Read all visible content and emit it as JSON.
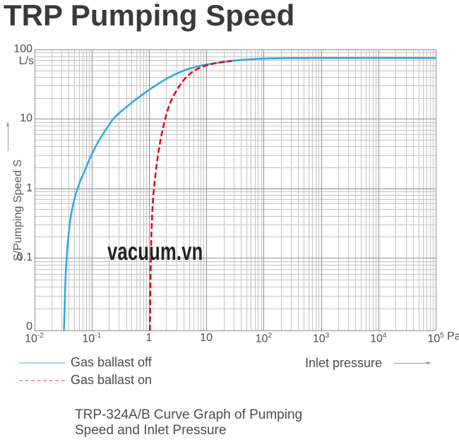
{
  "title": "TRP Pumping Speed",
  "watermark": "vacuum.vn",
  "caption": {
    "line1": "TRP-324A/B Curve Graph of Pumping",
    "line2": "Speed and Inlet Pressure"
  },
  "colors": {
    "gas_ballast_off": "#29a9e0",
    "gas_ballast_on": "#e60012",
    "legend_off_sample": "#a6d9ef",
    "legend_on_sample": "#f0a2a5",
    "grid_major": "#8f8f8f",
    "grid_minor": "#c4c4c4",
    "text": "#4d4d4d"
  },
  "axes": {
    "y_unit": "L/s",
    "y_axis_label": "S/Pumping Speed S",
    "x_axis_label": "Inlet pressure",
    "x_unit": "Pa",
    "y_ticks": [
      {
        "label": "100",
        "value": 100
      },
      {
        "label": "10",
        "value": 10
      },
      {
        "label": "1",
        "value": 1
      },
      {
        "label": "0.1",
        "value": 0.1
      },
      {
        "label": "0",
        "value": 0.01
      }
    ],
    "x_ticks": [
      {
        "base": "10",
        "exp": "-2",
        "value": 0.01
      },
      {
        "base": "10",
        "exp": "-1",
        "value": 0.1
      },
      {
        "label": "1",
        "value": 1
      },
      {
        "label": "10",
        "value": 10
      },
      {
        "base": "10",
        "exp": "2",
        "value": 100
      },
      {
        "base": "10",
        "exp": "3",
        "value": 1000
      },
      {
        "base": "10",
        "exp": "4",
        "value": 10000
      },
      {
        "base": "10",
        "exp": "5",
        "value": 100000
      }
    ]
  },
  "legend": [
    {
      "label": "Gas ballast off",
      "style": "solid"
    },
    {
      "label": "Gas ballast on",
      "style": "dashed"
    }
  ],
  "chart_data": {
    "type": "line",
    "title": "TRP Pumping Speed",
    "xlabel": "Inlet pressure (Pa)",
    "ylabel": "S/Pumping Speed S (L/s)",
    "x_scale": "log",
    "y_scale": "log",
    "xlim": [
      0.01,
      100000
    ],
    "ylim": [
      0.01,
      100
    ],
    "grid": true,
    "legend_position": "bottom-left",
    "series": [
      {
        "name": "Gas ballast off",
        "color": "#29a9e0",
        "style": "solid",
        "points": [
          [
            0.033,
            0.01
          ],
          [
            0.035,
            0.05
          ],
          [
            0.038,
            0.15
          ],
          [
            0.044,
            0.42
          ],
          [
            0.057,
            1.0
          ],
          [
            0.075,
            1.75
          ],
          [
            0.1,
            3.05
          ],
          [
            0.135,
            4.9
          ],
          [
            0.18,
            7.1
          ],
          [
            0.24,
            10
          ],
          [
            0.4,
            14.7
          ],
          [
            0.7,
            21.1
          ],
          [
            1.2,
            28.9
          ],
          [
            2.3,
            40
          ],
          [
            4.6,
            51.5
          ],
          [
            9.4,
            60
          ],
          [
            19,
            65.5
          ],
          [
            39,
            70.3
          ],
          [
            100,
            73.7
          ],
          [
            300,
            75
          ],
          [
            2000,
            75.4
          ],
          [
            20000,
            75.4
          ],
          [
            100000,
            75
          ]
        ]
      },
      {
        "name": "Gas ballast on",
        "color": "#e60012",
        "style": "dashed",
        "points": [
          [
            1.04,
            0.01
          ],
          [
            1.06,
            0.04
          ],
          [
            1.085,
            0.12
          ],
          [
            1.12,
            0.3
          ],
          [
            1.18,
            0.7
          ],
          [
            1.27,
            1.35
          ],
          [
            1.4,
            2.6
          ],
          [
            1.55,
            4.4
          ],
          [
            1.72,
            6.8
          ],
          [
            1.95,
            10.5
          ],
          [
            2.35,
            17
          ],
          [
            3.2,
            27.5
          ],
          [
            4.5,
            40
          ],
          [
            6.6,
            51
          ],
          [
            10,
            59
          ],
          [
            14,
            63
          ],
          [
            20,
            66
          ],
          [
            28,
            68.2
          ]
        ]
      }
    ]
  }
}
